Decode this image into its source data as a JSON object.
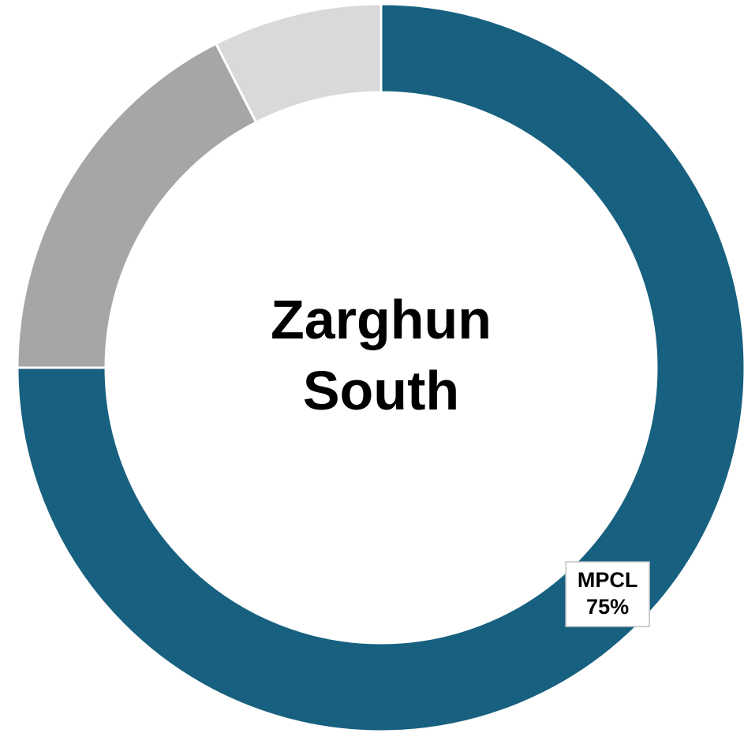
{
  "chart_data": {
    "type": "donut",
    "title": "Zarghun South",
    "categories": [
      "MPCL",
      null,
      null
    ],
    "values": [
      75,
      17.5,
      7.5
    ],
    "value_labels": [
      "75%",
      null,
      null
    ],
    "colors": [
      "#17607f",
      "#a6a6a6",
      "#d9d9d9"
    ]
  }
}
